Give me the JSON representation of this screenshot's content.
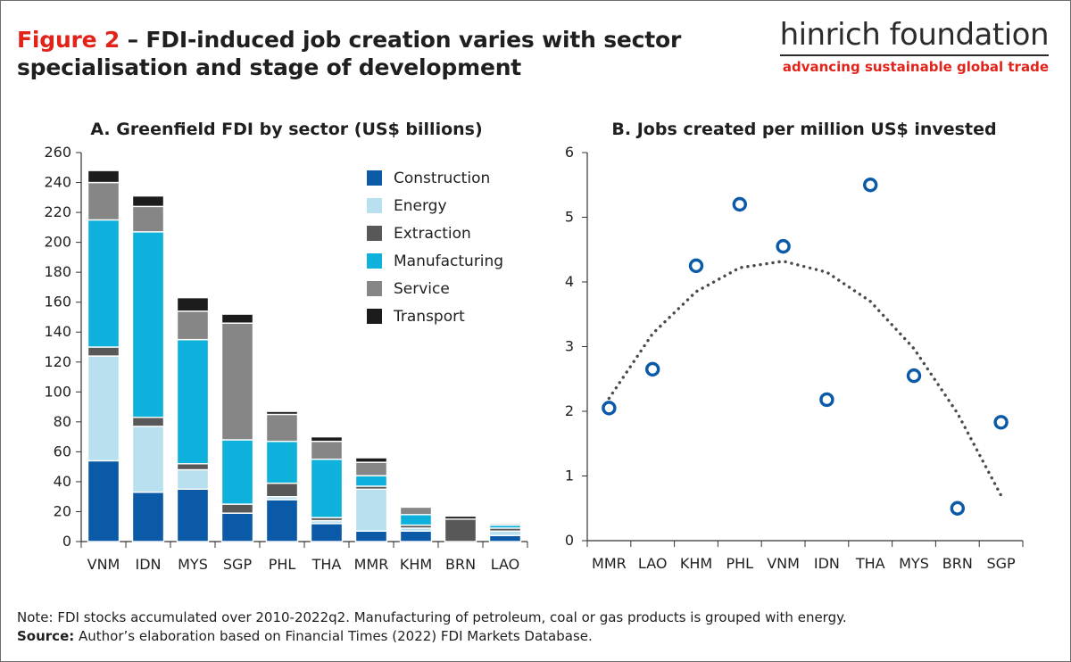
{
  "figure": {
    "label": "Figure 2",
    "title_rest": " – FDI-induced job creation varies with sector specialisation and stage of development"
  },
  "brand": {
    "name": "hinrich foundation",
    "tagline": "advancing sustainable global trade"
  },
  "colors": {
    "Construction": "#0a5aa8",
    "Energy": "#b8e0ef",
    "Extraction": "#585858",
    "Manufacturing": "#0eb0dc",
    "Service": "#868686",
    "Transport": "#1c1c1c",
    "marker": "#0a5aa8",
    "trend": "#4a4a4a",
    "accent_red": "#e2231a"
  },
  "chart_data": [
    {
      "type": "bar",
      "stacked": true,
      "title": "A. Greenfield FDI by sector (US$ billions)",
      "categories": [
        "VNM",
        "IDN",
        "MYS",
        "SGP",
        "PHL",
        "THA",
        "MMR",
        "KHM",
        "BRN",
        "LAO"
      ],
      "ylim": [
        0,
        260
      ],
      "yticks": [
        0,
        20,
        40,
        60,
        80,
        100,
        120,
        140,
        160,
        180,
        200,
        220,
        240,
        260
      ],
      "legend_position": "top-right",
      "series": [
        {
          "name": "Construction",
          "values": [
            54,
            33,
            35,
            19,
            28,
            12,
            7,
            7,
            0,
            4
          ]
        },
        {
          "name": "Energy",
          "values": [
            70,
            44,
            13,
            0,
            2,
            2,
            28,
            2,
            0,
            3
          ]
        },
        {
          "name": "Extraction",
          "values": [
            6,
            6,
            4,
            6,
            9,
            2,
            2,
            2,
            15,
            2
          ]
        },
        {
          "name": "Manufacturing",
          "values": [
            85,
            124,
            83,
            43,
            28,
            39,
            7,
            7,
            0,
            2
          ]
        },
        {
          "name": "Service",
          "values": [
            25,
            17,
            19,
            78,
            18,
            12,
            9,
            5,
            0,
            1
          ]
        },
        {
          "name": "Transport",
          "values": [
            8,
            7,
            9,
            6,
            2,
            3,
            3,
            0,
            2,
            0
          ]
        }
      ]
    },
    {
      "type": "scatter",
      "title": "B. Jobs created per million US$ invested",
      "categories": [
        "MMR",
        "LAO",
        "KHM",
        "PHL",
        "VNM",
        "IDN",
        "THA",
        "MYS",
        "BRN",
        "SGP"
      ],
      "values": [
        2.05,
        2.65,
        4.25,
        5.2,
        4.55,
        2.18,
        5.5,
        2.55,
        0.5,
        1.83
      ],
      "ylim": [
        0,
        6
      ],
      "yticks": [
        0,
        1,
        2,
        3,
        4,
        5,
        6
      ],
      "trendline": {
        "type": "quadratic",
        "style": "dotted",
        "values": [
          2.2,
          3.2,
          3.85,
          4.22,
          4.32,
          4.15,
          3.7,
          2.97,
          1.97,
          0.7
        ]
      }
    }
  ],
  "notes": {
    "note": "Note: FDI stocks accumulated over 2010-2022q2. Manufacturing of petroleum, coal or gas products is grouped with energy.",
    "source_label": "Source:",
    "source_text": " Author’s elaboration based on Financial Times (2022) FDI Markets Database."
  }
}
